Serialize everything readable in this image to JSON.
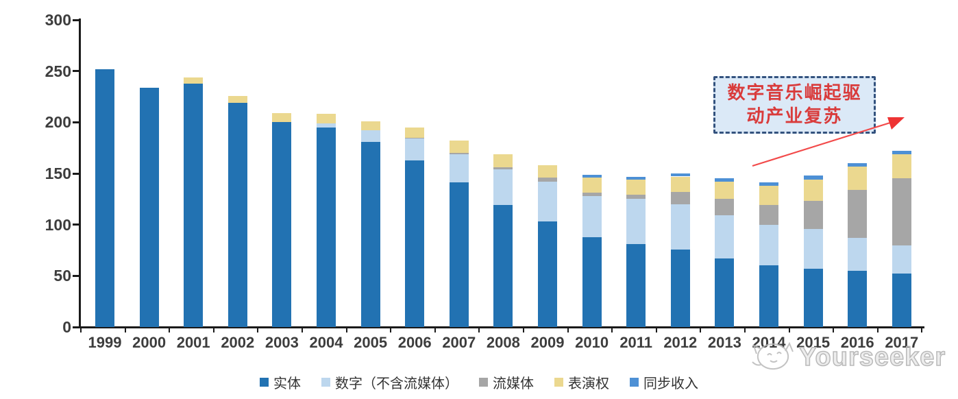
{
  "chart_data": {
    "type": "bar",
    "stacked": true,
    "title": "",
    "xlabel": "",
    "ylabel": "",
    "ylim": [
      0,
      300
    ],
    "yticks": [
      0,
      50,
      100,
      150,
      200,
      250,
      300
    ],
    "grid": false,
    "legend_position": "bottom",
    "categories": [
      "1999",
      "2000",
      "2001",
      "2002",
      "2003",
      "2004",
      "2005",
      "2006",
      "2007",
      "2008",
      "2009",
      "2010",
      "2011",
      "2012",
      "2013",
      "2014",
      "2015",
      "2016",
      "2017"
    ],
    "series": [
      {
        "name": "实体",
        "color": "#2272B2",
        "values": [
          252,
          234,
          238,
          219,
          200,
          195,
          181,
          163,
          141,
          119,
          103,
          88,
          81,
          76,
          67,
          60,
          57,
          55,
          52
        ]
      },
      {
        "name": "数字（不含流媒体）",
        "color": "#BDD7EE",
        "values": [
          0,
          0,
          0,
          0,
          0,
          4,
          11,
          21,
          28,
          35,
          39,
          40,
          44,
          44,
          42,
          40,
          39,
          32,
          28
        ]
      },
      {
        "name": "流媒体",
        "color": "#A6A6A6",
        "values": [
          0,
          0,
          0,
          0,
          0,
          0,
          0,
          1,
          1,
          2,
          4,
          3,
          4,
          12,
          16,
          19,
          27,
          47,
          65
        ]
      },
      {
        "name": "表演权",
        "color": "#EBD88F",
        "values": [
          0,
          0,
          6,
          7,
          9,
          9,
          9,
          10,
          12,
          13,
          12,
          15,
          15,
          15,
          17,
          19,
          21,
          23,
          24
        ]
      },
      {
        "name": "同步收入",
        "color": "#4D90D5",
        "values": [
          0,
          0,
          0,
          0,
          0,
          0,
          0,
          0,
          0,
          0,
          0,
          3,
          3,
          3,
          3,
          3,
          4,
          3,
          3
        ]
      }
    ]
  },
  "annotation": {
    "line1": "数字音乐崛起驱",
    "line2": "动产业复苏",
    "text_color": "#d93b3b",
    "box_fill": "#dbe9f7",
    "box_border": "#33527e",
    "arrow_color": "#f24a4a"
  },
  "watermark": {
    "text": "Yourseeker",
    "color": "#b9b9b9"
  },
  "colors": {
    "axis": "#1a1a1a",
    "tick_label": "#3d3d3d",
    "background": "#ffffff"
  }
}
